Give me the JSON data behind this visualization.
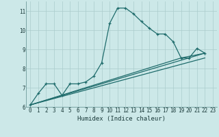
{
  "xlabel": "Humidex (Indice chaleur)",
  "bg_color": "#cce8e8",
  "grid_color": "#aacccc",
  "line_color": "#1e6b6b",
  "xlim": [
    -0.5,
    23.5
  ],
  "ylim": [
    6.0,
    11.5
  ],
  "yticks": [
    6,
    7,
    8,
    9,
    10,
    11
  ],
  "xticks": [
    0,
    1,
    2,
    3,
    4,
    5,
    6,
    7,
    8,
    9,
    10,
    11,
    12,
    13,
    14,
    15,
    16,
    17,
    18,
    19,
    20,
    21,
    22,
    23
  ],
  "main_series": [
    [
      0,
      6.1
    ],
    [
      1,
      6.7
    ],
    [
      2,
      7.2
    ],
    [
      3,
      7.2
    ],
    [
      4,
      6.6
    ],
    [
      5,
      7.2
    ],
    [
      6,
      7.2
    ],
    [
      7,
      7.3
    ],
    [
      8,
      7.6
    ],
    [
      9,
      8.3
    ],
    [
      10,
      10.35
    ],
    [
      11,
      11.15
    ],
    [
      12,
      11.15
    ],
    [
      13,
      10.85
    ],
    [
      14,
      10.45
    ],
    [
      15,
      10.1
    ],
    [
      16,
      9.8
    ],
    [
      17,
      9.8
    ],
    [
      18,
      9.4
    ],
    [
      19,
      8.55
    ],
    [
      20,
      8.55
    ],
    [
      21,
      9.05
    ],
    [
      22,
      8.8
    ]
  ],
  "line_a": [
    [
      0,
      6.1
    ],
    [
      22,
      8.8
    ]
  ],
  "line_b": [
    [
      0,
      6.1
    ],
    [
      22,
      8.55
    ]
  ],
  "line_c": [
    [
      0,
      6.1
    ],
    [
      19,
      8.55
    ],
    [
      22,
      8.8
    ]
  ]
}
